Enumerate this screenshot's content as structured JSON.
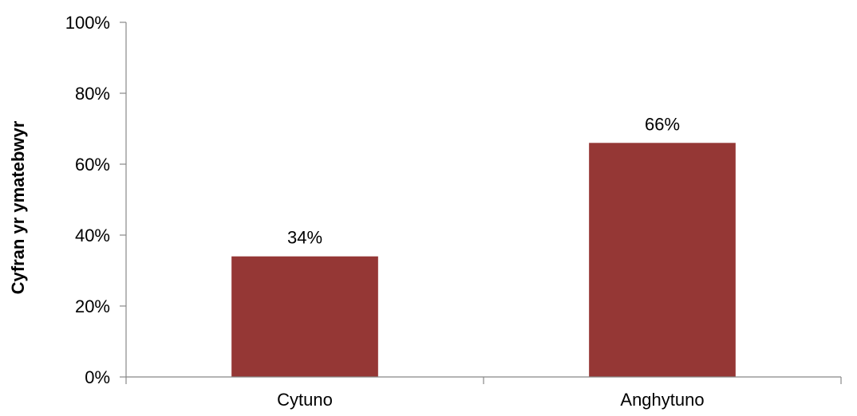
{
  "chart_data": {
    "type": "bar",
    "categories": [
      "Cytuno",
      "Anghytuno"
    ],
    "values": [
      34,
      66
    ],
    "data_labels": [
      "34%",
      "66%"
    ],
    "title": "",
    "xlabel": "",
    "ylabel": "Cyfran yr ymatebwyr",
    "ylim": [
      0,
      100
    ],
    "yticks": [
      0,
      20,
      40,
      60,
      80,
      100
    ],
    "ytick_labels": [
      "0%",
      "20%",
      "40%",
      "60%",
      "80%",
      "100%"
    ],
    "grid": false,
    "legend": "none",
    "bar_color": "#953735"
  }
}
